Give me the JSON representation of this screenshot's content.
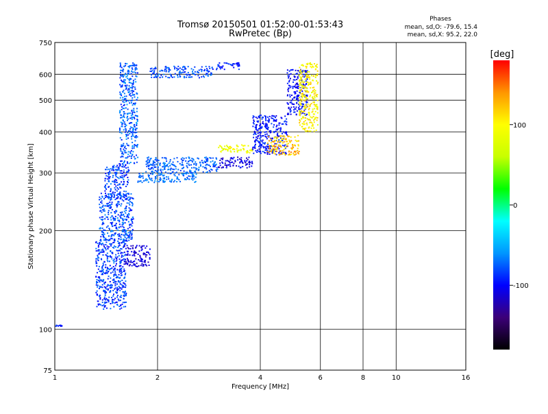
{
  "chart_data": {
    "type": "scatter",
    "title": "Tromsø 20150501 01:52:00-01:53:43",
    "subtitle": "RwPretec (Bp)",
    "xlabel": "Frequency [MHz]",
    "ylabel": "Stationary phase Virtual Height [km]",
    "x_scale": "log",
    "y_scale": "log",
    "xlim": [
      1,
      16
    ],
    "ylim": [
      75,
      750
    ],
    "x_ticks": [
      "1",
      "2",
      "4",
      "6",
      "8",
      "10",
      "16"
    ],
    "x_tick_values": [
      1,
      2,
      4,
      6,
      8,
      10,
      16
    ],
    "y_ticks": [
      "75",
      "100",
      "200",
      "300",
      "400",
      "500",
      "600",
      "750"
    ],
    "y_tick_values": [
      75,
      100,
      200,
      300,
      400,
      500,
      600,
      750
    ],
    "grid": true,
    "stats": {
      "heading": "Phases",
      "line_o": "mean, sd,O: -79.6, 15.4",
      "line_x": "mean, sd,X:  95.2, 22.0"
    },
    "colorbar": {
      "label": "[deg]",
      "range": [
        -180,
        180
      ],
      "ticks": [
        "100",
        "0",
        "-100"
      ],
      "tick_values": [
        100,
        0,
        -100
      ],
      "colors": [
        "#000000",
        "#3c0078",
        "#0000ff",
        "#0096ff",
        "#00ffff",
        "#00ff00",
        "#c8ff00",
        "#ffff00",
        "#ff9600",
        "#ff0000"
      ]
    },
    "series": [
      {
        "name": "",
        "phase": -95,
        "spread": 15,
        "x": [
          1.0,
          1.05
        ],
        "y": [
          102,
          103
        ]
      },
      {
        "name": "",
        "phase": -85,
        "spread": 20,
        "x": [
          1.32,
          1.62
        ],
        "y": [
          115,
          185
        ]
      },
      {
        "name": "",
        "phase": -110,
        "spread": 15,
        "x": [
          1.6,
          1.9
        ],
        "y": [
          155,
          180
        ]
      },
      {
        "name": "",
        "phase": -80,
        "spread": 20,
        "x": [
          1.35,
          1.7
        ],
        "y": [
          185,
          260
        ]
      },
      {
        "name": "",
        "phase": -85,
        "spread": 20,
        "x": [
          1.4,
          1.65
        ],
        "y": [
          250,
          320
        ]
      },
      {
        "name": "",
        "phase": -75,
        "spread": 20,
        "x": [
          1.55,
          1.75
        ],
        "y": [
          320,
          650
        ]
      },
      {
        "name": "",
        "phase": -70,
        "spread": 15,
        "x": [
          1.75,
          2.6
        ],
        "y": [
          280,
          300
        ]
      },
      {
        "name": "",
        "phase": -75,
        "spread": 15,
        "x": [
          1.85,
          3.0
        ],
        "y": [
          300,
          335
        ]
      },
      {
        "name": "",
        "phase": -80,
        "spread": 15,
        "x": [
          1.9,
          2.9
        ],
        "y": [
          585,
          635
        ]
      },
      {
        "name": "",
        "phase": -90,
        "spread": 15,
        "x": [
          2.9,
          3.5
        ],
        "y": [
          620,
          650
        ]
      },
      {
        "name": "",
        "phase": -110,
        "spread": 15,
        "x": [
          3.0,
          3.8
        ],
        "y": [
          310,
          335
        ]
      },
      {
        "name": "",
        "phase": 90,
        "spread": 20,
        "x": [
          3.0,
          3.8
        ],
        "y": [
          345,
          365
        ]
      },
      {
        "name": "",
        "phase": -95,
        "spread": 15,
        "x": [
          3.8,
          4.8
        ],
        "y": [
          340,
          450
        ]
      },
      {
        "name": "",
        "phase": 120,
        "spread": 30,
        "x": [
          4.2,
          5.2
        ],
        "y": [
          340,
          390
        ]
      },
      {
        "name": "",
        "phase": -100,
        "spread": 15,
        "x": [
          4.8,
          5.5
        ],
        "y": [
          450,
          620
        ]
      },
      {
        "name": "",
        "phase": 100,
        "spread": 25,
        "x": [
          5.2,
          5.9
        ],
        "y": [
          400,
          650
        ]
      }
    ]
  }
}
